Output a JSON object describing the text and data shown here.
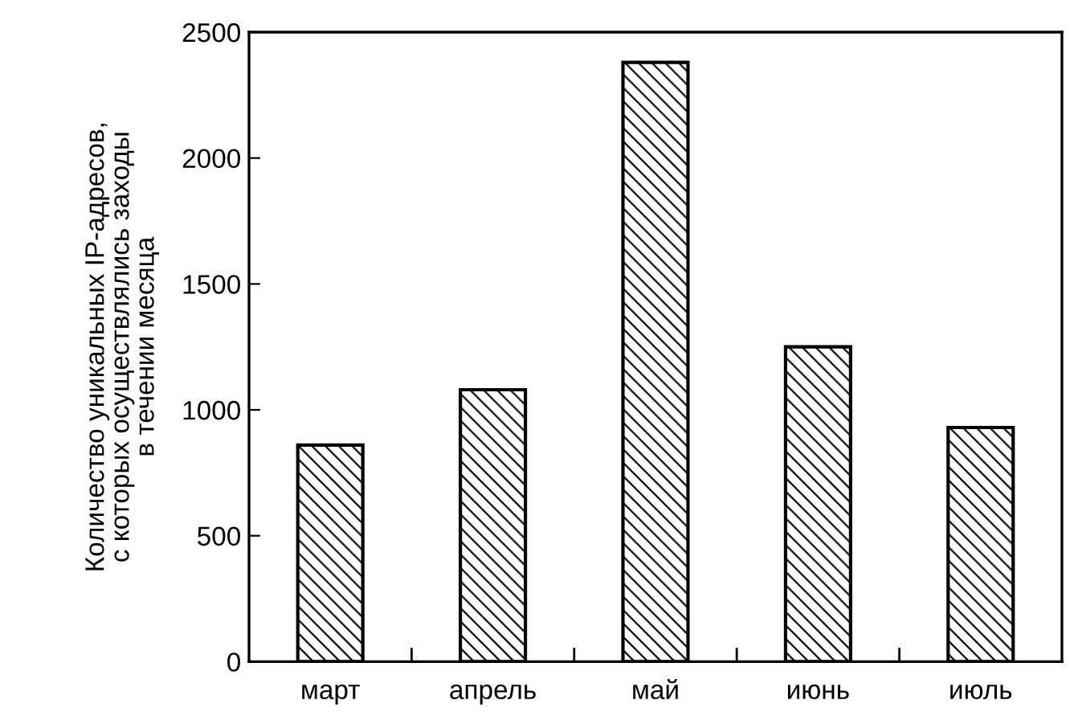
{
  "chart_data": {
    "type": "bar",
    "ylabel": "Количество уникальных IP-адресов,\nс которых осуществлялись заходы\nв течении месяца",
    "categories": [
      "март",
      "апрель",
      "май",
      "июнь",
      "июль"
    ],
    "values": [
      860,
      1080,
      2380,
      1250,
      930
    ],
    "color": "#000000",
    "ylim": [
      0,
      2500
    ],
    "yticks": [
      0,
      500,
      1000,
      1500,
      2000,
      2500
    ],
    "grid": false,
    "legend": false
  }
}
